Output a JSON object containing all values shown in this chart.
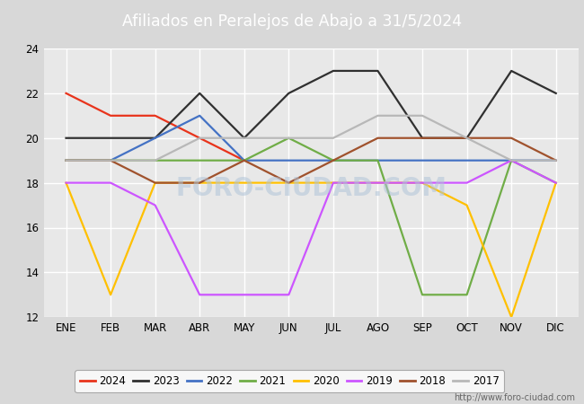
{
  "title": "Afiliados en Peralejos de Abajo a 31/5/2024",
  "title_bg_color": "#5b7fc4",
  "title_text_color": "white",
  "months": [
    "ENE",
    "FEB",
    "MAR",
    "ABR",
    "MAY",
    "JUN",
    "JUL",
    "AGO",
    "SEP",
    "OCT",
    "NOV",
    "DIC"
  ],
  "ylim": [
    12,
    24
  ],
  "yticks": [
    12,
    14,
    16,
    18,
    20,
    22,
    24
  ],
  "series": {
    "2024": {
      "color": "#e8341c",
      "data": [
        22,
        21,
        21,
        20,
        19,
        null,
        null,
        null,
        null,
        null,
        null,
        null
      ]
    },
    "2023": {
      "color": "#303030",
      "data": [
        20,
        20,
        20,
        22,
        20,
        22,
        23,
        23,
        20,
        20,
        23,
        22
      ]
    },
    "2022": {
      "color": "#4472c4",
      "data": [
        19,
        19,
        20,
        21,
        19,
        19,
        19,
        19,
        19,
        19,
        19,
        19
      ]
    },
    "2021": {
      "color": "#70ad47",
      "data": [
        19,
        19,
        19,
        19,
        19,
        20,
        19,
        19,
        13,
        13,
        19,
        18
      ]
    },
    "2020": {
      "color": "#ffc000",
      "data": [
        18,
        13,
        18,
        18,
        18,
        18,
        18,
        18,
        18,
        17,
        12,
        18
      ]
    },
    "2019": {
      "color": "#cc55ff",
      "data": [
        18,
        18,
        17,
        13,
        13,
        13,
        18,
        18,
        18,
        18,
        19,
        18
      ]
    },
    "2018": {
      "color": "#a0522d",
      "data": [
        19,
        19,
        18,
        18,
        19,
        18,
        19,
        20,
        20,
        20,
        20,
        19
      ]
    },
    "2017": {
      "color": "#b8b8b8",
      "data": [
        19,
        19,
        19,
        20,
        20,
        20,
        20,
        21,
        21,
        20,
        19,
        19
      ]
    }
  },
  "watermark": "FORO-CIUDAD.COM",
  "url": "http://www.foro-ciudad.com",
  "fig_bg_color": "#d8d8d8",
  "plot_bg_color": "#e8e8e8",
  "grid_color": "white"
}
